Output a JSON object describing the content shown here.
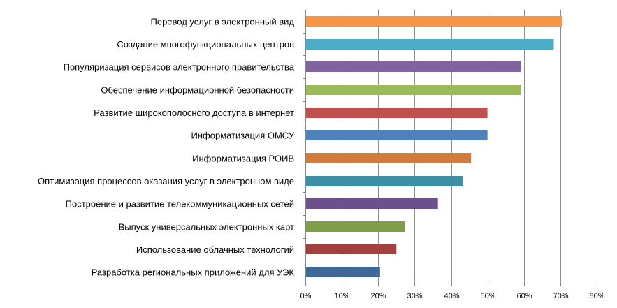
{
  "chart_data": {
    "type": "bar",
    "orientation": "horizontal",
    "categories": [
      "Перевод услуг в электронный вид",
      "Создание многофункциональных центров",
      "Популяризация сервисов электронного правительства",
      "Обеспечение информационной безопасности",
      "Развитие широкополосного доступа в интернет",
      "Информатизация ОМСУ",
      "Информатизация РОИВ",
      "Оптимизация процессов оказания услуг в электронном виде",
      "Построение и развитие телекоммуникационных сетей",
      "Выпуск универсальных электронных карт",
      "Использование облачных технологий",
      "Разработка региональных приложений для УЭК"
    ],
    "values": [
      70.5,
      68.2,
      59.1,
      59.1,
      50.0,
      50.0,
      45.5,
      43.2,
      36.4,
      27.3,
      25.0,
      20.5
    ],
    "colors": [
      "#F79646",
      "#4BACC6",
      "#8064A2",
      "#9BBB59",
      "#C0504D",
      "#4F81BD",
      "#D07C3C",
      "#3C8FA5",
      "#6A5189",
      "#7F9E4A",
      "#A2403D",
      "#3F6898"
    ],
    "xlim": [
      0,
      80
    ],
    "x_ticks": [
      "0%",
      "10%",
      "20%",
      "30%",
      "40%",
      "50%",
      "60%",
      "70%",
      "80%"
    ],
    "grid": "vertical",
    "legend": "none"
  }
}
